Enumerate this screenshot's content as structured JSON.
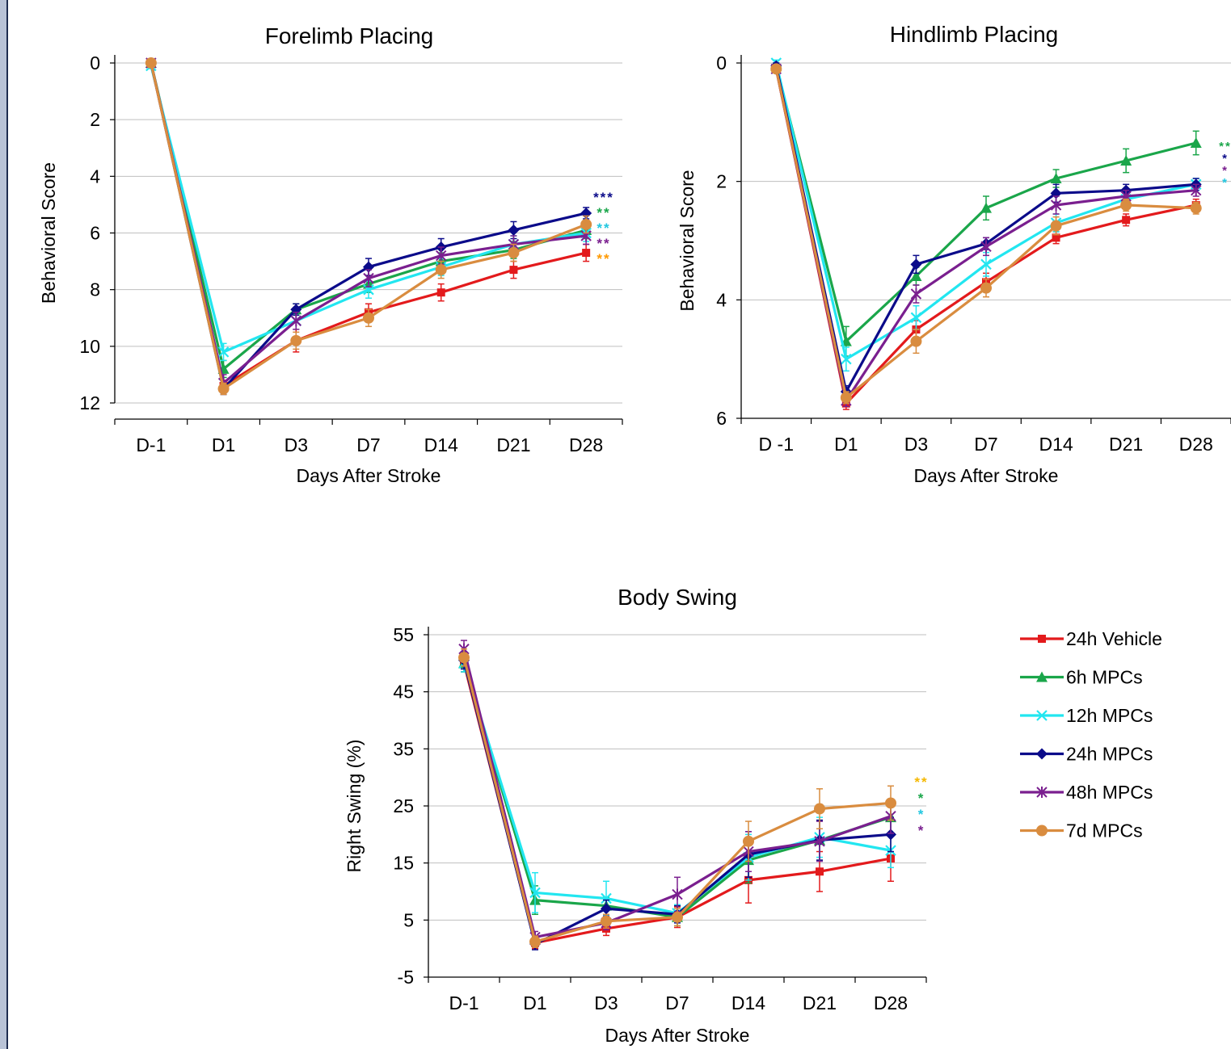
{
  "series_styles": [
    {
      "name": "24h Vehicle",
      "color": "#e31a1c",
      "marker": "square"
    },
    {
      "name": "6h MPCs",
      "color": "#1aa64a",
      "marker": "triangle"
    },
    {
      "name": "12h MPCs",
      "color": "#22e6f0",
      "marker": "x"
    },
    {
      "name": "24h MPCs",
      "color": "#0b0b8a",
      "marker": "diamond"
    },
    {
      "name": "48h MPCs",
      "color": "#7a1f8f",
      "marker": "star"
    },
    {
      "name": "7d MPCs",
      "color": "#d98c3f",
      "marker": "circle"
    }
  ],
  "chart_data": [
    {
      "type": "line",
      "title": "Forelimb Placing",
      "xlabel": "Days After Stroke",
      "ylabel": "Behavioral Score",
      "categories": [
        "D-1",
        "D1",
        "D3",
        "D7",
        "D14",
        "D21",
        "D28"
      ],
      "ylim": [
        12,
        0
      ],
      "y_inverted": true,
      "yticks": [
        0,
        2,
        4,
        6,
        8,
        10,
        12
      ],
      "grid": true,
      "series": [
        {
          "name": "24h Vehicle",
          "values": [
            0,
            11.4,
            9.8,
            8.8,
            8.1,
            7.3,
            6.7
          ],
          "errors": [
            0.1,
            0.2,
            0.4,
            0.3,
            0.3,
            0.3,
            0.3
          ]
        },
        {
          "name": "6h MPCs",
          "values": [
            0,
            10.8,
            8.7,
            7.8,
            7.0,
            6.6,
            5.9
          ],
          "errors": [
            0.1,
            0.3,
            0.2,
            0.3,
            0.3,
            0.3,
            0.3
          ]
        },
        {
          "name": "12h MPCs",
          "values": [
            0.1,
            10.2,
            9.1,
            8.0,
            7.2,
            6.4,
            6.0
          ],
          "errors": [
            0.1,
            0.3,
            0.3,
            0.3,
            0.3,
            0.3,
            0.3
          ]
        },
        {
          "name": "24h MPCs",
          "values": [
            0,
            11.5,
            8.7,
            7.2,
            6.5,
            5.9,
            5.3
          ],
          "errors": [
            0.1,
            0.2,
            0.2,
            0.3,
            0.3,
            0.3,
            0.2
          ]
        },
        {
          "name": "48h MPCs",
          "values": [
            0,
            11.3,
            9.1,
            7.6,
            6.8,
            6.4,
            6.1
          ],
          "errors": [
            0.1,
            0.3,
            0.3,
            0.3,
            0.3,
            0.3,
            0.3
          ]
        },
        {
          "name": "7d MPCs",
          "values": [
            0,
            11.5,
            9.8,
            9.0,
            7.3,
            6.7,
            5.7
          ],
          "errors": [
            0.1,
            0.2,
            0.3,
            0.3,
            0.3,
            0.3,
            0.3
          ]
        }
      ],
      "annotations": [
        {
          "text": "***",
          "color": "#0b0b8a"
        },
        {
          "text": "**",
          "color": "#1aa64a"
        },
        {
          "text": "**",
          "color": "#22c7e0"
        },
        {
          "text": "**",
          "color": "#7a1f8f"
        },
        {
          "text": "**",
          "color": "#ff9900"
        }
      ]
    },
    {
      "type": "line",
      "title": "Hindlimb Placing",
      "xlabel": "Days After Stroke",
      "ylabel": "Behavioral Score",
      "categories": [
        "D -1",
        "D1",
        "D3",
        "D7",
        "D14",
        "D21",
        "D28"
      ],
      "ylim": [
        6,
        0
      ],
      "y_inverted": true,
      "yticks": [
        0,
        2,
        4,
        6
      ],
      "grid": true,
      "series": [
        {
          "name": "24h Vehicle",
          "values": [
            0.1,
            5.75,
            4.5,
            3.7,
            2.95,
            2.65,
            2.4
          ],
          "errors": [
            0.05,
            0.1,
            0.15,
            0.15,
            0.1,
            0.1,
            0.1
          ]
        },
        {
          "name": "6h MPCs",
          "values": [
            0.05,
            4.7,
            3.6,
            2.45,
            1.95,
            1.65,
            1.35
          ],
          "errors": [
            0.05,
            0.25,
            0.15,
            0.2,
            0.15,
            0.2,
            0.2
          ]
        },
        {
          "name": "12h MPCs",
          "values": [
            0.0,
            5.0,
            4.3,
            3.4,
            2.7,
            2.3,
            2.05
          ],
          "errors": [
            0.05,
            0.2,
            0.2,
            0.2,
            0.15,
            0.1,
            0.1
          ]
        },
        {
          "name": "24h MPCs",
          "values": [
            0.05,
            5.55,
            3.4,
            3.05,
            2.2,
            2.15,
            2.05
          ],
          "errors": [
            0.05,
            0.1,
            0.15,
            0.1,
            0.15,
            0.1,
            0.1
          ]
        },
        {
          "name": "48h MPCs",
          "values": [
            0.1,
            5.7,
            3.9,
            3.1,
            2.4,
            2.25,
            2.15
          ],
          "errors": [
            0.05,
            0.1,
            0.15,
            0.15,
            0.15,
            0.1,
            0.1
          ]
        },
        {
          "name": "7d MPCs",
          "values": [
            0.1,
            5.65,
            4.7,
            3.8,
            2.75,
            2.4,
            2.45
          ],
          "errors": [
            0.05,
            0.1,
            0.2,
            0.15,
            0.15,
            0.1,
            0.1
          ]
        }
      ],
      "annotations": [
        {
          "text": "**",
          "color": "#1aa64a"
        },
        {
          "text": "*",
          "color": "#0b0b8a"
        },
        {
          "text": "*",
          "color": "#7a1f8f"
        },
        {
          "text": "*",
          "color": "#22c7e0"
        }
      ]
    },
    {
      "type": "line",
      "title": "Body Swing",
      "xlabel": "Days After Stroke",
      "ylabel": "Right Swing (%)",
      "categories": [
        "D-1",
        "D1",
        "D3",
        "D7",
        "D14",
        "D21",
        "D28"
      ],
      "ylim": [
        -5,
        55
      ],
      "yticks": [
        -5,
        5,
        15,
        25,
        35,
        45,
        55
      ],
      "grid": true,
      "legend": "right",
      "series": [
        {
          "name": "24h Vehicle",
          "values": [
            50,
            1.0,
            3.5,
            5.5,
            12.0,
            13.5,
            15.8
          ],
          "errors": [
            1.5,
            1.0,
            1.2,
            1.8,
            4.0,
            3.5,
            4.0
          ]
        },
        {
          "name": "6h MPCs",
          "values": [
            50,
            8.5,
            7.5,
            5.5,
            15.5,
            19.0,
            23.0
          ],
          "errors": [
            1.5,
            2.5,
            1.5,
            1.5,
            4.0,
            3.5,
            3.0
          ]
        },
        {
          "name": "12h MPCs",
          "values": [
            50,
            9.8,
            8.8,
            6.2,
            16.0,
            19.5,
            17.2
          ],
          "errors": [
            1.5,
            3.5,
            3.0,
            1.5,
            4.0,
            3.5,
            3.0
          ]
        },
        {
          "name": "24h MPCs",
          "values": [
            50.5,
            0.8,
            7.0,
            6.0,
            16.5,
            19.0,
            20.0
          ],
          "errors": [
            1.5,
            1.0,
            1.5,
            1.5,
            4.0,
            3.5,
            3.0
          ]
        },
        {
          "name": "48h MPCs",
          "values": [
            52.5,
            2.0,
            4.5,
            9.5,
            17.0,
            18.8,
            23.2
          ],
          "errors": [
            1.5,
            1.0,
            1.2,
            3.0,
            3.5,
            3.5,
            3.0
          ]
        },
        {
          "name": "7d MPCs",
          "values": [
            51.0,
            1.2,
            4.8,
            5.5,
            18.8,
            24.5,
            25.5
          ],
          "errors": [
            1.5,
            1.0,
            1.2,
            1.5,
            3.5,
            3.5,
            3.0
          ]
        }
      ],
      "annotations": [
        {
          "text": "**",
          "color": "#f5b800"
        },
        {
          "text": "*",
          "color": "#1aa64a"
        },
        {
          "text": "*",
          "color": "#22c7e0"
        },
        {
          "text": "*",
          "color": "#7a1f8f"
        }
      ]
    }
  ]
}
